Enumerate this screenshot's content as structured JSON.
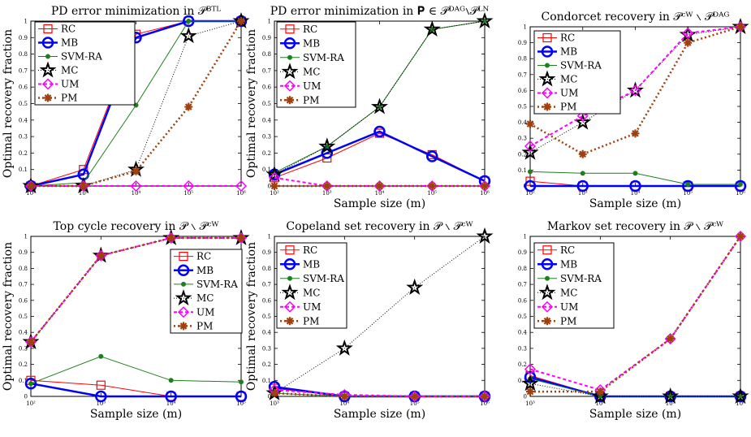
{
  "chart_data": [
    {
      "type": "line",
      "title": "PD error minimization in 𝒫ᴮᵀᴸ",
      "xlabel": "",
      "ylabel": "Optimal recovery fraction",
      "x": [
        "10²",
        "10³",
        "10⁴",
        "10⁵",
        "10⁶"
      ],
      "ylim": [
        0,
        1
      ],
      "yticks": [
        "0",
        "0.1",
        "0.2",
        "0.3",
        "0.4",
        "0.5",
        "0.6",
        "0.7",
        "0.8",
        "0.9",
        "1"
      ],
      "legend_position": "top-left",
      "series": [
        {
          "name": "RC",
          "values": [
            0,
            0.1,
            0.92,
            1,
            1
          ]
        },
        {
          "name": "MB",
          "values": [
            0,
            0.07,
            0.9,
            1,
            1
          ]
        },
        {
          "name": "SVM-RA",
          "values": [
            0,
            0.02,
            0.49,
            1,
            1
          ]
        },
        {
          "name": "MC",
          "values": [
            0,
            0,
            0.1,
            0.91,
            1
          ]
        },
        {
          "name": "UM",
          "values": [
            0,
            0,
            0,
            0,
            0
          ]
        },
        {
          "name": "PM",
          "values": [
            0,
            0,
            0.09,
            0.48,
            1
          ]
        }
      ]
    },
    {
      "type": "line",
      "title": "PD error minimization in 𝐏 ∈ 𝒫ᴰᴬᴳ∖𝒫ᴸᴺ",
      "xlabel": "Sample size (m)",
      "ylabel": "Optimal recovery fraction",
      "x": [
        "10²",
        "10³",
        "10⁴",
        "10⁵",
        "10⁶"
      ],
      "ylim": [
        0,
        1
      ],
      "yticks": [
        "0",
        "0.1",
        "0.2",
        "0.3",
        "0.4",
        "0.5",
        "0.6",
        "0.7",
        "0.8",
        "0.9",
        "1"
      ],
      "legend_position": "top-left",
      "series": [
        {
          "name": "RC",
          "values": [
            0.05,
            0.17,
            0.32,
            0.19,
            0.03
          ]
        },
        {
          "name": "MB",
          "values": [
            0.07,
            0.2,
            0.33,
            0.18,
            0.03
          ]
        },
        {
          "name": "SVM-RA",
          "values": [
            0.08,
            0.24,
            0.48,
            0.95,
            1
          ]
        },
        {
          "name": "MC",
          "values": [
            0.07,
            0.24,
            0.48,
            0.95,
            1
          ]
        },
        {
          "name": "UM",
          "values": [
            0.05,
            0,
            0,
            0,
            0
          ]
        },
        {
          "name": "PM",
          "values": [
            0,
            0,
            0,
            0,
            0
          ]
        }
      ]
    },
    {
      "type": "line",
      "title": "Condorcet recovery in 𝒫ᶜᵂ ∖ 𝒫ᴰᴬᴳ",
      "xlabel": "Sample size (m)",
      "ylabel": "",
      "x": [
        "10²",
        "10³",
        "10⁴",
        "10⁵",
        "10⁶"
      ],
      "ylim": [
        0,
        1
      ],
      "yticks": [
        "0",
        "0.1",
        "0.2",
        "0.3",
        "0.4",
        "0.5",
        "0.6",
        "0.7",
        "0.8",
        "0.9",
        "1"
      ],
      "legend_position": "top-left",
      "series": [
        {
          "name": "RC",
          "values": [
            0.03,
            0,
            0,
            0,
            0
          ]
        },
        {
          "name": "MB",
          "values": [
            0,
            0,
            0,
            0,
            0
          ]
        },
        {
          "name": "SVM-RA",
          "values": [
            0.09,
            0.08,
            0.08,
            0.01,
            0.01
          ]
        },
        {
          "name": "MC",
          "values": [
            0.21,
            0.4,
            0.6,
            0.95,
            1
          ]
        },
        {
          "name": "UM",
          "values": [
            0.25,
            0.44,
            0.6,
            0.96,
            1
          ]
        },
        {
          "name": "PM",
          "values": [
            0.39,
            0.2,
            0.33,
            0.9,
            1
          ]
        }
      ]
    },
    {
      "type": "line",
      "title": "Top cycle recovery in 𝒫 ∖ 𝒫ᶜᵂ",
      "xlabel": "Sample size (m)",
      "ylabel": "Optimal recovery fraction",
      "x": [
        "10²",
        "10³",
        "10⁴",
        "10⁵"
      ],
      "ylim": [
        0,
        1
      ],
      "yticks": [
        "0",
        "0.1",
        "0.2",
        "0.3",
        "0.4",
        "0.5",
        "0.6",
        "0.7",
        "0.8",
        "0.9",
        "1"
      ],
      "legend_position": "right",
      "series": [
        {
          "name": "RC",
          "values": [
            0.1,
            0.07,
            0,
            0
          ]
        },
        {
          "name": "MB",
          "values": [
            0.08,
            0,
            0,
            0
          ]
        },
        {
          "name": "SVM-RA",
          "values": [
            0.08,
            0.25,
            0.1,
            0.09
          ]
        },
        {
          "name": "MC",
          "values": [
            0.34,
            0.88,
            0.99,
            0.99
          ]
        },
        {
          "name": "UM",
          "values": [
            0.34,
            0.88,
            0.99,
            0.99
          ]
        },
        {
          "name": "PM",
          "values": [
            0.34,
            0.88,
            0.99,
            0.99
          ]
        }
      ]
    },
    {
      "type": "line",
      "title": "Copeland set recovery in 𝒫 ∖ 𝒫ᶜᵂ",
      "xlabel": "Sample size (m)",
      "ylabel": "Optimal recovery fraction",
      "x": [
        "10³",
        "10⁴",
        "10⁵",
        "10⁶"
      ],
      "ylim": [
        0,
        1
      ],
      "yticks": [
        "0",
        "0.1",
        "0.2",
        "0.3",
        "0.4",
        "0.5",
        "0.6",
        "0.7",
        "0.8",
        "0.9",
        "1"
      ],
      "legend_position": "top-left",
      "series": [
        {
          "name": "RC",
          "values": [
            0.05,
            0,
            0,
            0
          ]
        },
        {
          "name": "MB",
          "values": [
            0.06,
            0,
            0,
            0
          ]
        },
        {
          "name": "SVM-RA",
          "values": [
            0.02,
            0,
            0,
            0
          ]
        },
        {
          "name": "MC",
          "values": [
            0.02,
            0.3,
            0.68,
            1
          ]
        },
        {
          "name": "UM",
          "values": [
            0.04,
            0.01,
            0,
            0
          ]
        },
        {
          "name": "PM",
          "values": [
            0.02,
            0,
            0,
            0
          ]
        }
      ]
    },
    {
      "type": "line",
      "title": "Markov set recovery in 𝒫 ∖ 𝒫ᶜᵂ",
      "xlabel": "Sample size (m)",
      "ylabel": "",
      "x": [
        "10³",
        "10⁴",
        "10⁵",
        "10⁶"
      ],
      "ylim": [
        0,
        1
      ],
      "yticks": [
        "0",
        "0.1",
        "0.2",
        "0.3",
        "0.4",
        "0.5",
        "0.6",
        "0.7",
        "0.8",
        "0.9",
        "1"
      ],
      "legend_position": "top-left",
      "series": [
        {
          "name": "RC",
          "values": [
            0.13,
            0,
            0,
            0
          ]
        },
        {
          "name": "MB",
          "values": [
            0.12,
            0,
            0,
            0
          ]
        },
        {
          "name": "SVM-RA",
          "values": [
            0.11,
            0,
            0,
            0
          ]
        },
        {
          "name": "MC",
          "values": [
            0.08,
            0,
            0,
            0
          ]
        },
        {
          "name": "UM",
          "values": [
            0.17,
            0.04,
            0.36,
            1
          ]
        },
        {
          "name": "PM",
          "values": [
            0.03,
            0.03,
            0.36,
            1
          ]
        }
      ]
    }
  ],
  "series_styles": {
    "RC": {
      "color": "#ff0000",
      "marker": "square",
      "dash": "",
      "width": 1
    },
    "MB": {
      "color": "#0000ff",
      "marker": "circle",
      "dash": "",
      "width": 2.5
    },
    "SVM-RA": {
      "color": "#1e7f1e",
      "marker": "dot",
      "dash": "",
      "width": 1
    },
    "MC": {
      "color": "#000000",
      "marker": "star",
      "dash": "1,2",
      "width": 1
    },
    "UM": {
      "color": "#ff00ff",
      "marker": "diamond",
      "dash": "4,3",
      "width": 2
    },
    "PM": {
      "color": "#a0400f",
      "marker": "asterisk",
      "dash": "2,3",
      "width": 2.5
    }
  }
}
